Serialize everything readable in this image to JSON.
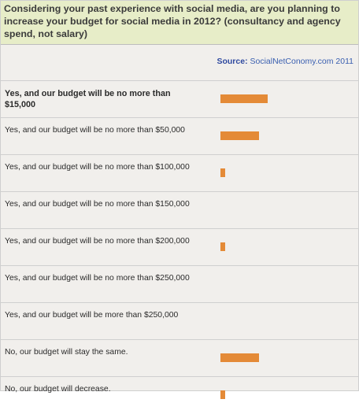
{
  "chart_data": {
    "type": "bar",
    "title": "Considering your past experience with social media, are you planning to increase your budget for social media in 2012? (consultancy and agency spend, not salary)",
    "source_label": "Source:",
    "source_value": "SocialNetConomy.com 2011",
    "categories": [
      "Yes, and our budget will be no more than $15,000",
      "Yes, and our budget will be no more than $50,000",
      "Yes, and our budget will be no more than $100,000",
      "Yes, and our budget will be no more than $150,000",
      "Yes, and our budget will be no more than $200,000",
      "Yes, and our budget will be no more than $250,000",
      "Yes, and our budget will be more than $250,000",
      "No, our budget will stay the same.",
      "No, our budget will decrease."
    ],
    "values": [
      60,
      49,
      6,
      0,
      6,
      0,
      0,
      49,
      6
    ],
    "value_scale_max": 160,
    "bar_color": "#e48a37",
    "highlight_index": 0
  }
}
